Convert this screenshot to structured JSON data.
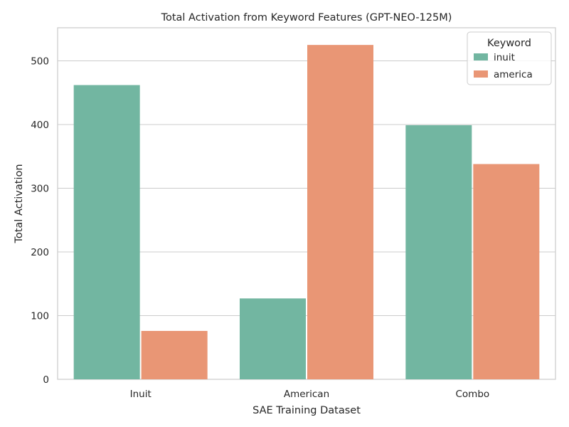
{
  "chart_data": {
    "type": "bar",
    "title": "Total Activation from Keyword Features (GPT-NEO-125M)",
    "xlabel": "SAE Training Dataset",
    "ylabel": "Total Activation",
    "categories": [
      "Inuit",
      "American",
      "Combo"
    ],
    "series": [
      {
        "name": "inuit",
        "color": "#72b6a1",
        "values": [
          462,
          127,
          399
        ]
      },
      {
        "name": "america",
        "color": "#e99675",
        "values": [
          76,
          525,
          338
        ]
      }
    ],
    "ylim": [
      0,
      552
    ],
    "yticks": [
      0,
      100,
      200,
      300,
      400,
      500
    ],
    "grid": true,
    "legend": {
      "title": "Keyword",
      "position": "top-right"
    }
  }
}
